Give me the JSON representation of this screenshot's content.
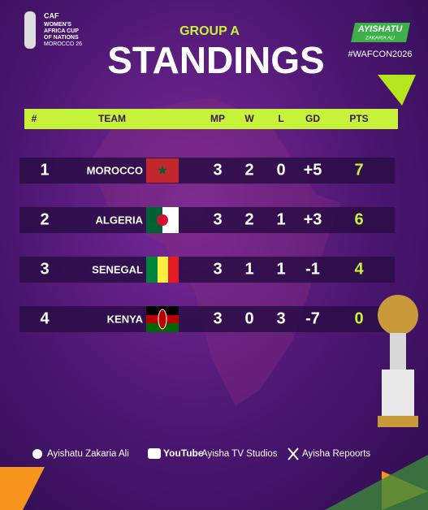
{
  "logo": {
    "org": "CAF",
    "line1": "WOMEN'S",
    "line2": "AFRICA CUP",
    "line3": "OF NATIONS",
    "line4": "MOROCCO 26"
  },
  "brand": {
    "name": "AYISHATU",
    "sub": "ZAKARIA ALI",
    "hashtag": "#WAFCON2026"
  },
  "header": {
    "group": "GROUP A",
    "title": "STANDINGS"
  },
  "table": {
    "columns": [
      "#",
      "TEAM",
      "MP",
      "W",
      "L",
      "GD",
      "PTS"
    ],
    "rows": [
      [
        1,
        "MOROCCO",
        3,
        2,
        0,
        "+5",
        7
      ],
      [
        2,
        "ALGERIA",
        3,
        2,
        1,
        "+3",
        6
      ],
      [
        3,
        "SENEGAL",
        3,
        1,
        1,
        "-1",
        4
      ],
      [
        4,
        "KENYA",
        3,
        0,
        3,
        "-7",
        0
      ]
    ]
  },
  "footer": {
    "facebook": "Ayishatu Zakaria Ali",
    "youtube_logo": "YouTube",
    "youtube": "Ayisha TV Studios",
    "tiktok": "Ayisha Repoorts"
  }
}
